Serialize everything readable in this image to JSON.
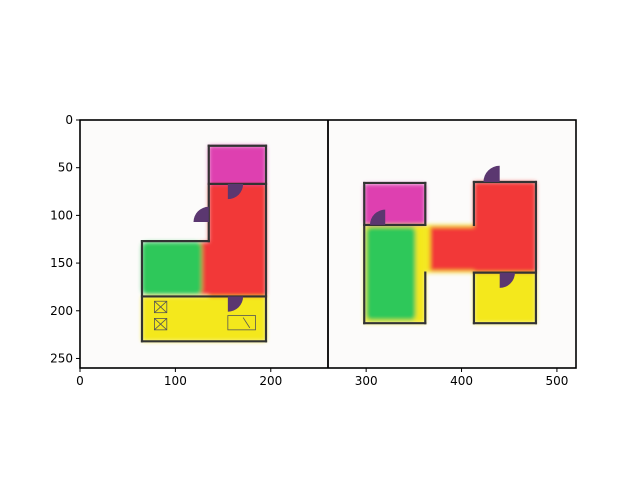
{
  "chart_data": {
    "type": "image",
    "xlim": [
      0,
      520
    ],
    "ylim": [
      260,
      0
    ],
    "xticks": [
      0,
      100,
      200,
      300,
      400,
      500
    ],
    "yticks": [
      0,
      50,
      100,
      150,
      200,
      250
    ],
    "divider_x": 260,
    "colors": {
      "magenta": "#DE40B0",
      "red": "#F23838",
      "green": "#2FC85A",
      "yellow": "#F4E81C",
      "door": "#5B3770",
      "wall": "#333333",
      "background": "#FCFBFA"
    },
    "floorplans": [
      {
        "name": "left-plan",
        "rooms": [
          {
            "color": "magenta",
            "x0": 135,
            "x1": 195,
            "y0": 27,
            "y1": 67
          },
          {
            "color": "red",
            "x0": 135,
            "x1": 195,
            "y0": 67,
            "y1": 185
          },
          {
            "color": "red",
            "x0": 125,
            "x1": 138,
            "y0": 128,
            "y1": 183
          },
          {
            "color": "green",
            "x0": 65,
            "x1": 128,
            "y0": 128,
            "y1": 183
          },
          {
            "color": "yellow",
            "x0": 65,
            "x1": 195,
            "y0": 185,
            "y1": 232
          }
        ],
        "walls": [
          {
            "x0": 135,
            "y0": 27,
            "x1": 195,
            "y1": 27
          },
          {
            "x0": 195,
            "y0": 27,
            "x1": 195,
            "y1": 232
          },
          {
            "x0": 65,
            "y0": 232,
            "x1": 195,
            "y1": 232
          },
          {
            "x0": 65,
            "y0": 127,
            "x1": 65,
            "y1": 232
          },
          {
            "x0": 65,
            "y0": 127,
            "x1": 135,
            "y1": 127
          },
          {
            "x0": 135,
            "y0": 27,
            "x1": 135,
            "y1": 127
          },
          {
            "x0": 135,
            "y0": 67,
            "x1": 195,
            "y1": 67
          },
          {
            "x0": 65,
            "y0": 185,
            "x1": 195,
            "y1": 185
          }
        ],
        "doors": [
          {
            "cx": 135,
            "cy": 107,
            "r": 16,
            "dir": "left"
          },
          {
            "cx": 155,
            "cy": 67,
            "r": 16,
            "dir": "down"
          },
          {
            "cx": 155,
            "cy": 185,
            "r": 16,
            "dir": "down"
          }
        ]
      },
      {
        "name": "right-plan",
        "rooms": [
          {
            "color": "magenta",
            "x0": 298,
            "x1": 362,
            "y0": 67,
            "y1": 110
          },
          {
            "color": "yellow",
            "x0": 298,
            "x1": 362,
            "y0": 110,
            "y1": 213
          },
          {
            "color": "green",
            "x0": 300,
            "x1": 352,
            "y0": 112,
            "y1": 210
          },
          {
            "color": "yellow",
            "x0": 362,
            "x1": 415,
            "y0": 110,
            "y1": 160
          },
          {
            "color": "red",
            "x0": 367,
            "x1": 415,
            "y0": 112,
            "y1": 158
          },
          {
            "color": "red",
            "x0": 413,
            "x1": 478,
            "y0": 65,
            "y1": 160
          },
          {
            "color": "yellow",
            "x0": 413,
            "x1": 478,
            "y0": 160,
            "y1": 213
          }
        ],
        "walls": [
          {
            "x0": 298,
            "y0": 66,
            "x1": 362,
            "y1": 66
          },
          {
            "x0": 362,
            "y0": 66,
            "x1": 362,
            "y1": 110
          },
          {
            "x0": 298,
            "y0": 66,
            "x1": 298,
            "y1": 213
          },
          {
            "x0": 298,
            "y0": 213,
            "x1": 362,
            "y1": 213
          },
          {
            "x0": 362,
            "y0": 160,
            "x1": 362,
            "y1": 213
          },
          {
            "x0": 298,
            "y0": 110,
            "x1": 362,
            "y1": 110
          },
          {
            "x0": 413,
            "y0": 65,
            "x1": 478,
            "y1": 65
          },
          {
            "x0": 478,
            "y0": 65,
            "x1": 478,
            "y1": 213
          },
          {
            "x0": 413,
            "y0": 213,
            "x1": 478,
            "y1": 213
          },
          {
            "x0": 413,
            "y0": 160,
            "x1": 413,
            "y1": 213
          },
          {
            "x0": 413,
            "y0": 65,
            "x1": 413,
            "y1": 110
          },
          {
            "x0": 413,
            "y0": 160,
            "x1": 478,
            "y1": 160
          }
        ],
        "doors": [
          {
            "cx": 320,
            "cy": 110,
            "r": 16,
            "dir": "up"
          },
          {
            "cx": 440,
            "cy": 65,
            "r": 17,
            "dir": "up"
          },
          {
            "cx": 440,
            "cy": 160,
            "r": 16,
            "dir": "down"
          }
        ]
      }
    ]
  }
}
